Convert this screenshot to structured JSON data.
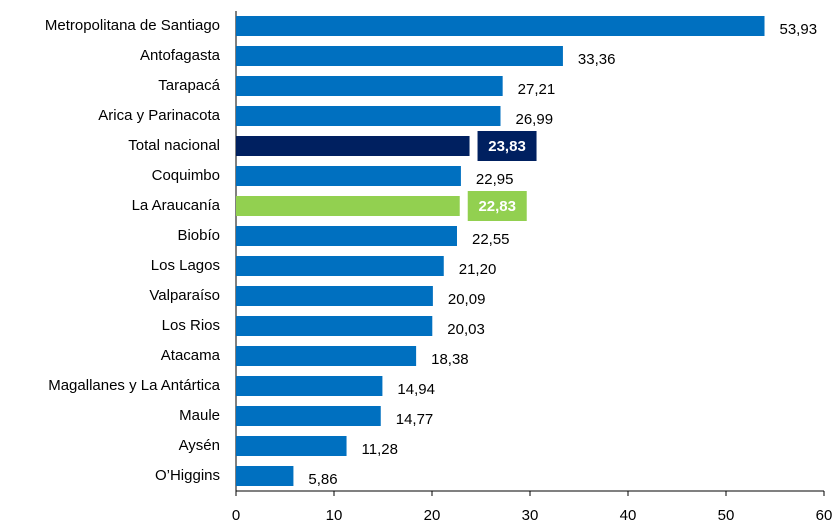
{
  "chart_data": {
    "type": "barh",
    "categories": [
      "Metropolitana de Santiago",
      "Antofagasta",
      "Tarapacá",
      "Arica y Parinacota",
      "Total nacional",
      "Coquimbo",
      "La Araucanía",
      "Biobío",
      "Los Lagos",
      "Valparaíso",
      "Los Rios",
      "Atacama",
      "Magallanes y La Antártica",
      "Maule",
      "Aysén",
      "O’Higgins"
    ],
    "values": [
      53.93,
      33.36,
      27.21,
      26.99,
      23.83,
      22.95,
      22.83,
      22.55,
      21.2,
      20.09,
      20.03,
      18.38,
      14.94,
      14.77,
      11.28,
      5.86
    ],
    "value_labels": [
      "53,93",
      "33,36",
      "27,21",
      "26,99",
      "23,83",
      "22,95",
      "22,83",
      "22,55",
      "21,20",
      "20,09",
      "20,03",
      "18,38",
      "14,94",
      "14,77",
      "11,28",
      "5,86"
    ],
    "color": "#0070c0",
    "colors": [
      "#0070c0",
      "#0070c0",
      "#0070c0",
      "#0070c0",
      "#002060",
      "#0070c0",
      "#92d050",
      "#0070c0",
      "#0070c0",
      "#0070c0",
      "#0070c0",
      "#0070c0",
      "#0070c0",
      "#0070c0",
      "#0070c0",
      "#0070c0"
    ],
    "xlim": [
      0,
      60
    ],
    "xticks": [
      0,
      10,
      20,
      30,
      40,
      50,
      60
    ],
    "grid": false
  }
}
